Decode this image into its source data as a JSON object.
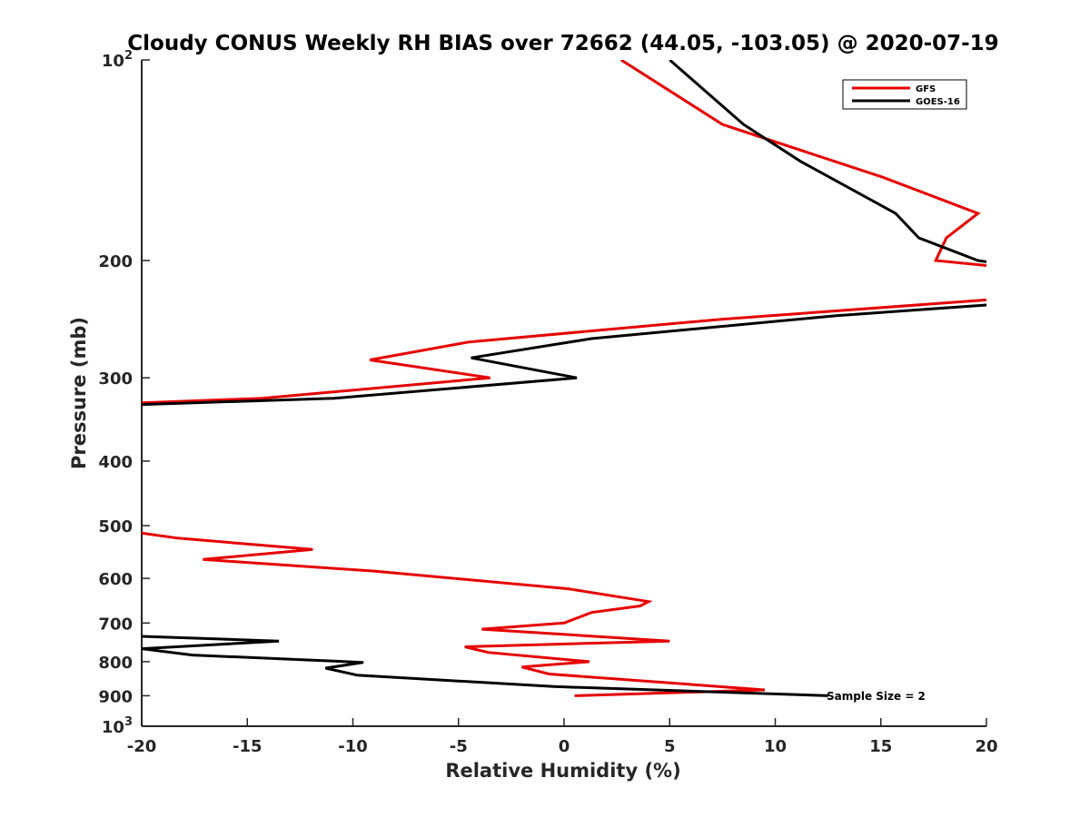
{
  "chart_data": {
    "type": "line",
    "title": "Cloudy CONUS Weekly RH BIAS over 72662 (44.05, -103.05) @ 2020-07-19",
    "xlabel": "Relative Humidity (%)",
    "ylabel": "Pressure (mb)",
    "xlim": [
      -20,
      20
    ],
    "ylim": [
      100,
      1000
    ],
    "y_scale": "log",
    "y_reversed": true,
    "x_ticks": [
      "-20",
      "-15",
      "-10",
      "-5",
      "0",
      "5",
      "10",
      "15",
      "20"
    ],
    "y_ticks": [
      {
        "value": 100,
        "label": "10",
        "exp": "2"
      },
      {
        "value": 200,
        "label": "200"
      },
      {
        "value": 300,
        "label": "300"
      },
      {
        "value": 400,
        "label": "400"
      },
      {
        "value": 500,
        "label": "500"
      },
      {
        "value": 600,
        "label": "600"
      },
      {
        "value": 700,
        "label": "700"
      },
      {
        "value": 800,
        "label": "800"
      },
      {
        "value": 900,
        "label": "900"
      },
      {
        "value": 1000,
        "label": "10",
        "exp": "3"
      }
    ],
    "grid": false,
    "legend_position": "top-right",
    "annotation": "Sample Size = 2",
    "series": [
      {
        "name": "GFS",
        "color": "#e60000",
        "segments": [
          [
            [
              2.7,
              100
            ],
            [
              7.5,
              125
            ],
            [
              15.1,
              150
            ],
            [
              19.6,
              170
            ],
            [
              18.1,
              185
            ],
            [
              17.6,
              200
            ],
            [
              21.0,
              205
            ]
          ],
          [
            [
              21.0,
              228
            ],
            [
              7.5,
              245
            ],
            [
              -4.5,
              265
            ],
            [
              -9.2,
              282
            ],
            [
              -3.5,
              300
            ],
            [
              -14.3,
              322
            ],
            [
              -20,
              327
            ]
          ],
          [
            [
              -20,
              513
            ],
            [
              -18.3,
              522
            ],
            [
              -11.9,
              543
            ],
            [
              -17.1,
              562
            ],
            [
              -9.0,
              585
            ],
            [
              0.2,
              622
            ],
            [
              4.0,
              650
            ],
            [
              3.6,
              660
            ],
            [
              1.3,
              675
            ],
            [
              0,
              700
            ],
            [
              -3.9,
              715
            ],
            [
              5,
              745
            ],
            [
              -4.7,
              760
            ],
            [
              -3.6,
              775
            ],
            [
              1.2,
              800
            ],
            [
              -2.0,
              815
            ],
            [
              -0.7,
              835
            ],
            [
              9.5,
              882
            ],
            [
              0.5,
              900
            ]
          ]
        ]
      },
      {
        "name": "GOES-16",
        "color": "#000000",
        "segments": [
          [
            [
              5.0,
              100
            ],
            [
              8.5,
              125
            ],
            [
              11.2,
              142
            ],
            [
              15.7,
              170
            ],
            [
              16.8,
              185
            ],
            [
              19.6,
              200
            ],
            [
              21.0,
              203
            ]
          ],
          [
            [
              21.0,
              232
            ],
            [
              12.9,
              242
            ],
            [
              1.3,
              262
            ],
            [
              -4.4,
              280
            ],
            [
              0.6,
              300
            ],
            [
              -10.9,
              322
            ],
            [
              -20,
              329
            ]
          ],
          [
            [
              -20,
              733
            ],
            [
              -13.5,
              745
            ],
            [
              -20,
              765
            ],
            [
              -17.6,
              782
            ],
            [
              -9.5,
              802
            ],
            [
              -11.3,
              818
            ],
            [
              -9.8,
              838
            ],
            [
              -0.5,
              872
            ],
            [
              12.5,
              900
            ]
          ]
        ]
      }
    ]
  }
}
